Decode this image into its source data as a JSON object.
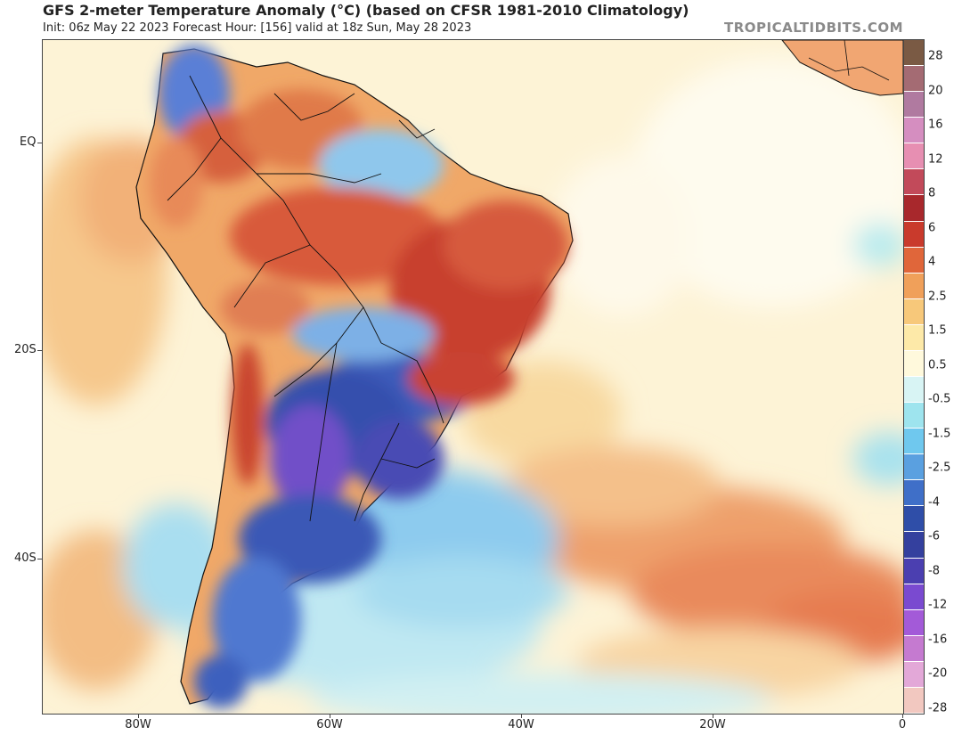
{
  "header": {
    "title": "GFS 2-meter Temperature Anomaly (°C) (based on CFSR 1981-2010 Climatology)",
    "subtitle": "Init: 06z May 22 2023   Forecast Hour: [156]   valid at 18z Sun, May 28 2023",
    "brand": "TROPICALTIDBITS.COM"
  },
  "axes": {
    "lat_labels": [
      "EQ",
      "20S",
      "40S"
    ],
    "lon_labels": [
      "80W",
      "60W",
      "40W",
      "20W",
      "0"
    ]
  },
  "colorbar": {
    "labels": [
      "28",
      "20",
      "16",
      "12",
      "8",
      "6",
      "4",
      "2.5",
      "1.5",
      "0.5",
      "-0.5",
      "-1.5",
      "-2.5",
      "-4",
      "-6",
      "-8",
      "-12",
      "-16",
      "-20",
      "-28"
    ],
    "colors": [
      "#7a5a44",
      "#a46b73",
      "#b07aa0",
      "#d58ec0",
      "#e78fb2",
      "#c24a5a",
      "#a8282c",
      "#c93a2c",
      "#e0663a",
      "#f0a05a",
      "#f7c87a",
      "#fde9a8",
      "#fff9dc",
      "#d8f4f4",
      "#9ee4ee",
      "#6fc8ee",
      "#5aa0e0",
      "#3f6fc8",
      "#2f4ea8",
      "#34409e",
      "#4b3fb0",
      "#7a4ad0",
      "#a35ad8",
      "#c57ad0",
      "#e3a8d8",
      "#f2c8c0"
    ]
  },
  "legend_colors": {
    "ocean_warm": "#f9dfa7",
    "ocean_neutral": "#fdf7e6",
    "warm_anomaly": "#e06a3e",
    "strong_warm": "#c73c2a",
    "cool_anomaly": "#7ab6ea",
    "cold_anomaly": "#3a56b4",
    "very_cold": "#6d48c8",
    "border_lines": "#111111"
  }
}
